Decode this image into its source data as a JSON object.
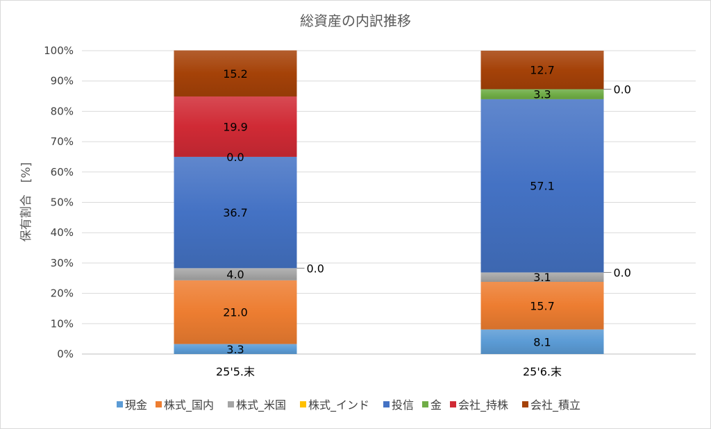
{
  "chart_data": {
    "type": "bar",
    "stacked": true,
    "title": "総資産の内訳推移",
    "xlabel": "",
    "ylabel": "保有割合　[%]",
    "ylim": [
      0,
      100
    ],
    "yticks": [
      "0%",
      "10%",
      "20%",
      "30%",
      "40%",
      "50%",
      "60%",
      "70%",
      "80%",
      "90%",
      "100%"
    ],
    "grid": true,
    "legend": "bottom",
    "categories": [
      "25'5.末",
      "25'6.末"
    ],
    "series": [
      {
        "name": "現金",
        "color": "#5B9BD5",
        "values": [
          3.3,
          8.1
        ]
      },
      {
        "name": "株式_国内",
        "color": "#ED7D31",
        "values": [
          21.0,
          15.7
        ]
      },
      {
        "name": "株式_米国",
        "color": "#A5A5A5",
        "values": [
          4.0,
          3.1
        ]
      },
      {
        "name": "株式_インド",
        "color": "#FFC000",
        "values": [
          0.0,
          0.0
        ]
      },
      {
        "name": "投信",
        "color": "#4472C4",
        "values": [
          36.7,
          57.1
        ]
      },
      {
        "name": "金",
        "color": "#70AD47",
        "values": [
          0.0,
          3.3
        ]
      },
      {
        "name": "会社_持株",
        "color": "#D02A35",
        "values": [
          19.9,
          0.0
        ]
      },
      {
        "name": "会社_積立",
        "color": "#A54208",
        "values": [
          15.2,
          12.7
        ]
      }
    ]
  }
}
